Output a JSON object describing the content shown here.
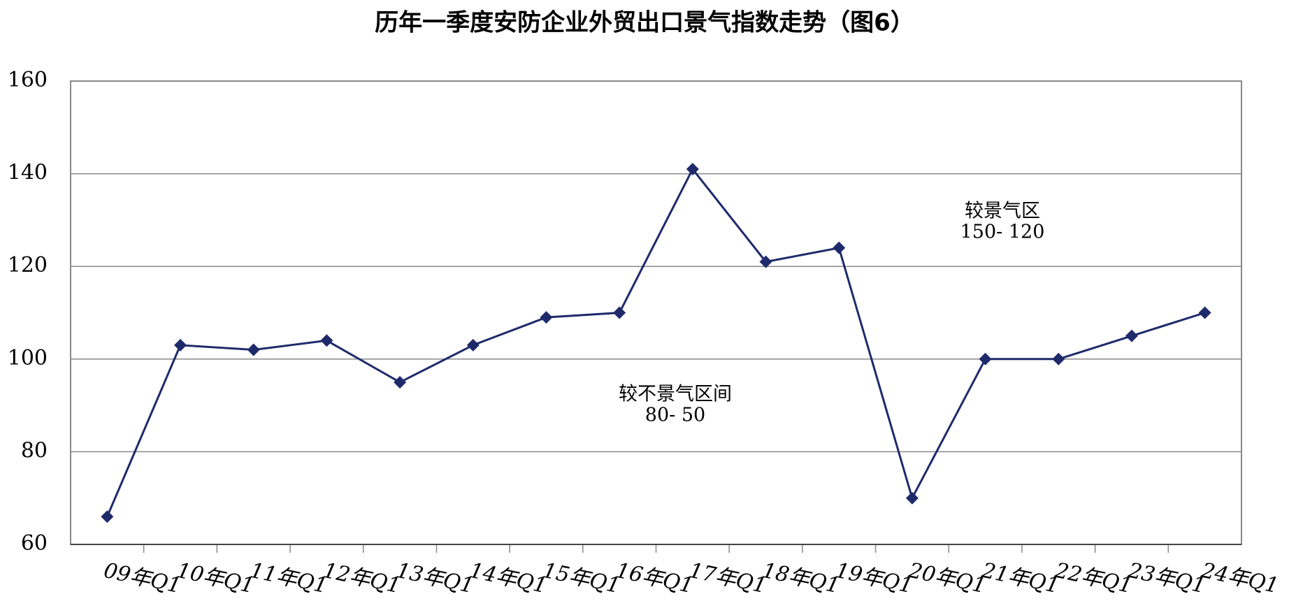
{
  "chart_data": {
    "type": "line",
    "title": "历年一季度安防企业外贸出口景气指数走势（图6）",
    "categories": [
      "09年Q1",
      "10年Q1",
      "11年Q1",
      "12年Q1",
      "13年Q1",
      "14年Q1",
      "15年Q1",
      "16年Q1",
      "17年Q1",
      "18年Q1",
      "19年Q1",
      "20年Q1",
      "21年Q1",
      "22年Q1",
      "23年Q1",
      "24年Q1"
    ],
    "series": [
      {
        "color": "#1f2a6b",
        "values": [
          66,
          103,
          102,
          104,
          95,
          103,
          109,
          110,
          141,
          121,
          124,
          70,
          100,
          100,
          105,
          110
        ]
      }
    ],
    "ylim": [
      60,
      160
    ],
    "yticks": [
      60,
      80,
      100,
      120,
      140,
      160
    ],
    "grid": true,
    "annotations": [
      [
        "较景气区",
        "150- 120"
      ],
      [
        "较不景气区间",
        "80- 50"
      ]
    ]
  }
}
